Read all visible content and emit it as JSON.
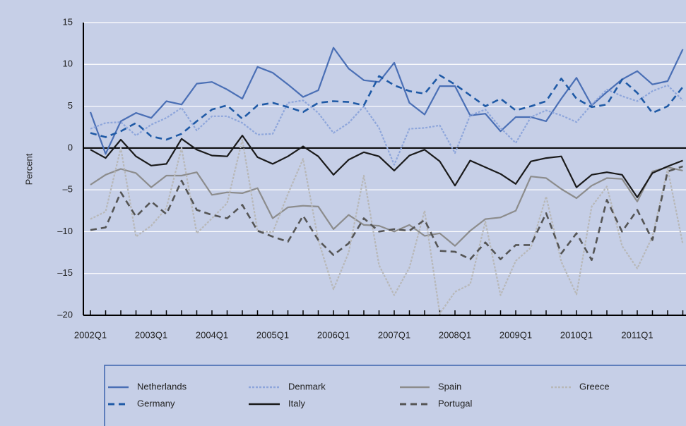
{
  "chart_data": {
    "type": "line",
    "y_label": "Percent",
    "categories": [
      "2002Q1",
      null,
      null,
      null,
      "2003Q1",
      null,
      null,
      null,
      "2004Q1",
      null,
      null,
      null,
      "2005Q1",
      null,
      null,
      null,
      "2006Q1",
      null,
      null,
      null,
      "2007Q1",
      null,
      null,
      null,
      "2008Q1",
      null,
      null,
      null,
      "2009Q1",
      null,
      null,
      null,
      "2010Q1",
      null,
      null,
      null,
      "2011Q1",
      null,
      null,
      null
    ],
    "ylim": [
      -20,
      15
    ],
    "yticks": [
      {
        "value": -20,
        "label": "–20"
      },
      {
        "value": -15,
        "label": "–15"
      },
      {
        "value": -10,
        "label": "–10"
      },
      {
        "value": -5,
        "label": "–5"
      },
      0,
      5,
      10,
      15
    ],
    "grid": true,
    "legend": "bottom",
    "series": [
      {
        "name": "Netherlands",
        "color": "#4a6fb5",
        "style": "solid",
        "values": [
          4.3,
          -0.7,
          3.2,
          4.2,
          3.6,
          5.6,
          5.2,
          7.7,
          7.9,
          7.0,
          5.9,
          9.7,
          9.0,
          7.6,
          6.1,
          6.9,
          12.0,
          9.5,
          8.1,
          7.9,
          10.2,
          5.4,
          4.0,
          7.4,
          7.4,
          3.9,
          4.1,
          2.0,
          3.7,
          3.7,
          3.2,
          5.9,
          8.4,
          5.1,
          6.7,
          8.2,
          9.2,
          7.6,
          8.0,
          11.8
        ]
      },
      {
        "name": "Denmark",
        "color": "#8ea6db",
        "style": "dotted",
        "values": [
          2.3,
          3.0,
          3.1,
          1.5,
          2.8,
          3.6,
          4.8,
          2.1,
          3.8,
          3.8,
          3.0,
          1.6,
          1.7,
          5.4,
          5.7,
          4.2,
          1.8,
          3.0,
          5.0,
          2.4,
          -2.0,
          2.3,
          2.4,
          2.7,
          -0.6,
          3.9,
          4.6,
          2.4,
          0.6,
          3.7,
          4.5,
          3.9,
          3.1,
          5.2,
          7.0,
          6.2,
          5.6,
          6.8,
          7.5,
          5.7
        ]
      },
      {
        "name": "Spain",
        "color": "#8c8c8c",
        "style": "solid",
        "values": [
          -4.4,
          -3.2,
          -2.5,
          -3.0,
          -4.7,
          -3.3,
          -3.3,
          -2.9,
          -5.6,
          -5.3,
          -5.4,
          -4.8,
          -8.4,
          -7.1,
          -6.9,
          -7.0,
          -9.7,
          -8.0,
          -9.2,
          -9.3,
          -10.0,
          -9.2,
          -10.5,
          -10.2,
          -11.7,
          -9.9,
          -8.5,
          -8.3,
          -7.5,
          -3.4,
          -3.6,
          -4.9,
          -6.0,
          -4.5,
          -3.6,
          -3.7,
          -6.4,
          -2.8,
          -2.3,
          -2.7
        ]
      },
      {
        "name": "Greece",
        "color": "#b8b8b8",
        "style": "dotted",
        "values": [
          -8.5,
          -7.6,
          0.0,
          -10.6,
          -9.3,
          -7.2,
          0.0,
          -10.2,
          -8.4,
          -6.6,
          1.0,
          -9.9,
          -10.1,
          -5.5,
          -1.3,
          -11.0,
          -16.9,
          -12.5,
          -3.3,
          -14.0,
          -17.6,
          -14.3,
          -7.5,
          -19.8,
          -17.2,
          -16.3,
          -8.8,
          -17.6,
          -13.5,
          -11.9,
          -5.8,
          -13.6,
          -17.5,
          -7.0,
          -4.6,
          -11.7,
          -14.4,
          -10.6,
          -2.5,
          -11.5
        ]
      },
      {
        "name": "Germany",
        "color": "#1f5aa6",
        "style": "dashed",
        "values": [
          1.8,
          1.3,
          2.0,
          3.0,
          1.4,
          1.0,
          1.7,
          3.2,
          4.6,
          5.1,
          3.5,
          5.1,
          5.4,
          4.9,
          4.3,
          5.4,
          5.6,
          5.5,
          5.1,
          8.6,
          7.5,
          6.8,
          6.5,
          8.7,
          7.6,
          6.3,
          5.0,
          5.9,
          4.5,
          5.0,
          5.6,
          8.3,
          5.9,
          4.9,
          5.2,
          8.2,
          6.6,
          4.2,
          5.0,
          7.3
        ]
      },
      {
        "name": "Italy",
        "color": "#1a1a1a",
        "style": "solid",
        "values": [
          -0.2,
          -1.2,
          1.0,
          -1.0,
          -2.1,
          -1.9,
          1.1,
          -0.2,
          -0.9,
          -1.0,
          1.5,
          -1.1,
          -1.9,
          -1.0,
          0.2,
          -1.0,
          -3.2,
          -1.4,
          -0.5,
          -1.0,
          -2.7,
          -0.9,
          -0.2,
          -1.6,
          -4.5,
          -1.5,
          -2.3,
          -3.1,
          -4.3,
          -1.6,
          -1.2,
          -1.0,
          -4.7,
          -3.2,
          -2.9,
          -3.2,
          -5.9,
          -3.0,
          -2.2,
          -1.5
        ]
      },
      {
        "name": "Portugal",
        "color": "#555555",
        "style": "dashed",
        "values": [
          -9.8,
          -9.5,
          -5.3,
          -8.2,
          -6.4,
          -7.9,
          -3.9,
          -7.4,
          -8.0,
          -8.4,
          -6.8,
          -9.9,
          -10.6,
          -11.2,
          -8.1,
          -11.0,
          -12.8,
          -11.4,
          -8.4,
          -10.0,
          -9.7,
          -9.9,
          -8.6,
          -12.3,
          -12.4,
          -13.3,
          -11.3,
          -13.3,
          -11.6,
          -11.6,
          -7.8,
          -12.6,
          -10.2,
          -13.4,
          -6.2,
          -10.0,
          -7.4,
          -11.0,
          -2.8,
          -2.2
        ]
      }
    ]
  }
}
